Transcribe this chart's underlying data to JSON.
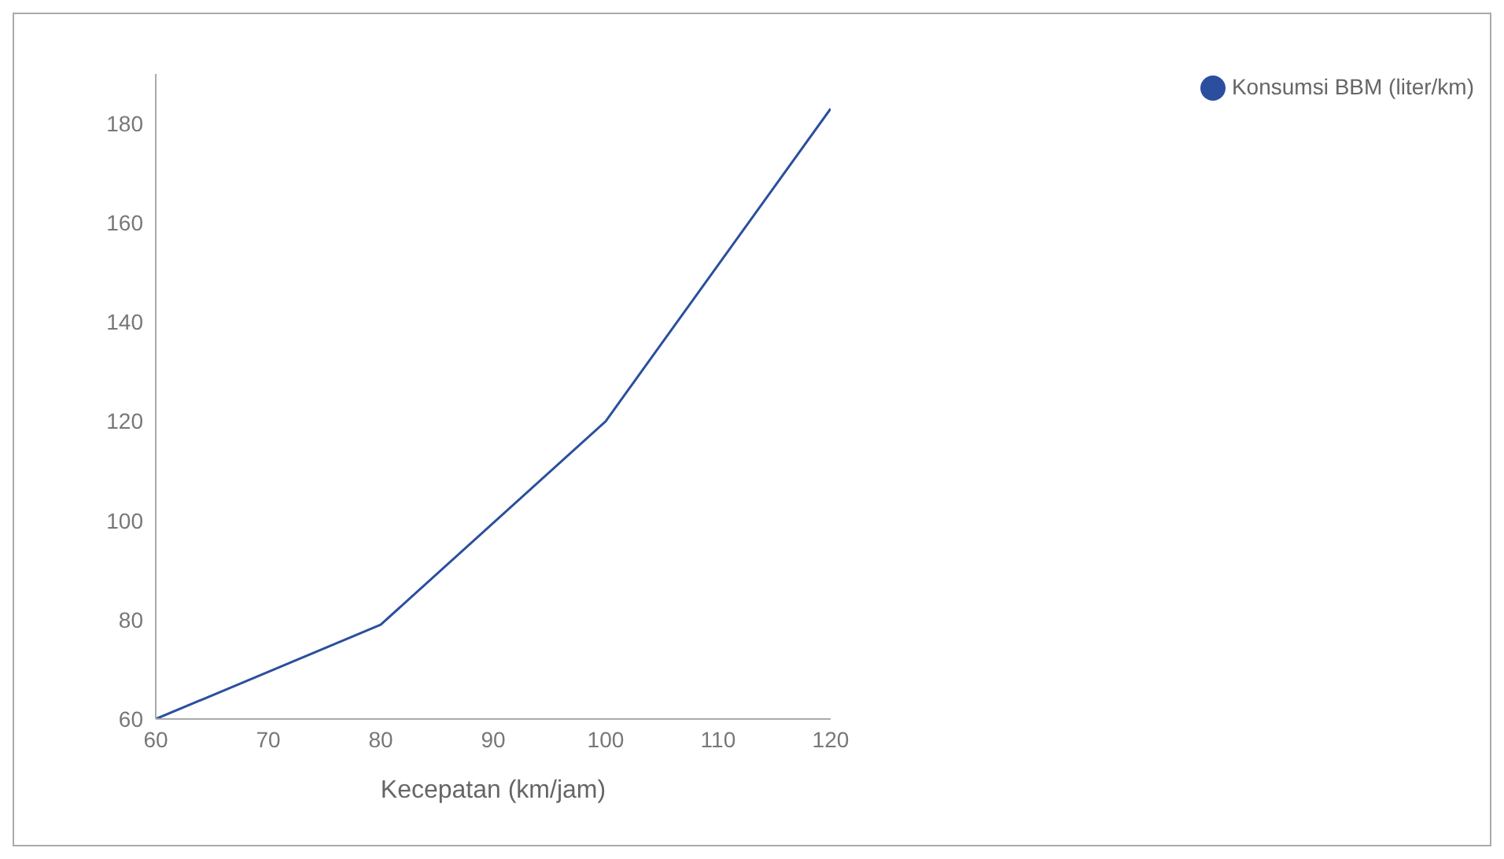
{
  "chart_data": {
    "type": "line",
    "xlabel": "Kecepatan (km/jam)",
    "x": [
      60,
      80,
      100,
      120
    ],
    "series": [
      {
        "name": "Konsumsi BBM (liter/km)",
        "color": "#2b4f9e",
        "values": [
          60,
          79,
          120,
          183
        ]
      }
    ],
    "xlim": [
      60,
      120
    ],
    "xticks": [
      60,
      70,
      80,
      90,
      100,
      110,
      120
    ],
    "ylim": [
      60,
      190
    ],
    "yticks": [
      60,
      80,
      100,
      120,
      140,
      160,
      180
    ],
    "grid": false,
    "legend": "top right",
    "marker": "none",
    "line_style": "solid"
  }
}
